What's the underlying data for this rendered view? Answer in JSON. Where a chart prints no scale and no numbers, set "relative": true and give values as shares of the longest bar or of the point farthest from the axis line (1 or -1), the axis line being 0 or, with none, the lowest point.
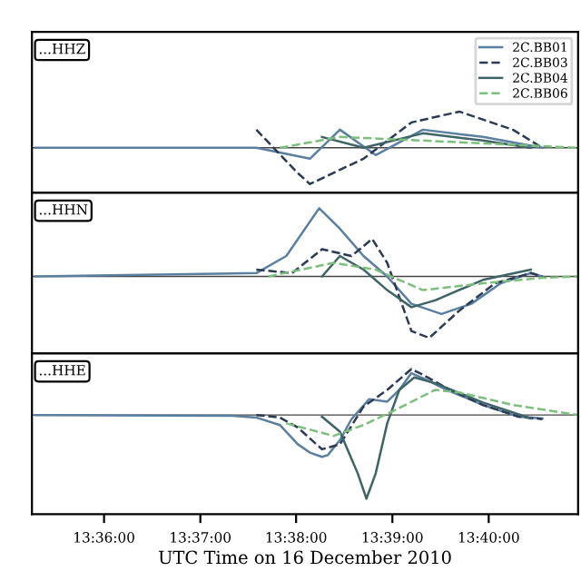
{
  "chart_data": [
    {
      "type": "line",
      "relative": true,
      "annotations": [
        "...HHZ"
      ],
      "legend": "top right",
      "tick_labels": false,
      "grid": false,
      "xlim": [
        13.5875,
        13.6822
      ],
      "xticks": [
        {
          "value": 13.6,
          "label": null
        },
        {
          "value": 13.6167,
          "label": null
        },
        {
          "value": 13.6333,
          "label": null
        },
        {
          "value": 13.65,
          "label": null
        },
        {
          "value": 13.6667,
          "label": null
        }
      ],
      "series": [
        {
          "name": "2C.BB01",
          "color": "#5b7fa0",
          "line_style": "solid",
          "x": [
            13.5881,
            13.6264,
            13.6357,
            13.6409,
            13.6471,
            13.6553,
            13.6657,
            13.676
          ],
          "values": [
            0,
            0,
            -0.3,
            0.5,
            -0.2,
            0.5,
            0.3,
            0
          ]
        },
        {
          "name": "2C.BB03",
          "color": "#2b3a55",
          "line_style": "dashed",
          "x": [
            13.6264,
            13.6336,
            13.6357,
            13.645,
            13.6533,
            13.6616,
            13.6709,
            13.676
          ],
          "values": [
            0.5,
            -0.7,
            -1.0,
            -0.3,
            0.7,
            1.0,
            0.5,
            0
          ]
        },
        {
          "name": "2C.BB04",
          "color": "#3f6468",
          "line_style": "solid",
          "x": [
            13.6378,
            13.645,
            13.6553,
            13.6657,
            13.674
          ],
          "values": [
            0.3,
            0,
            0.4,
            0.2,
            0
          ]
        },
        {
          "name": "2C.BB06",
          "color": "#7cbf7c",
          "line_style": "dashed",
          "x": [
            13.6305,
            13.6409,
            13.6553,
            13.6822
          ],
          "values": [
            0,
            0.3,
            0.2,
            0
          ]
        }
      ]
    },
    {
      "type": "line",
      "relative": true,
      "annotations": [
        "...HHN"
      ],
      "tick_labels": false,
      "grid": false,
      "xlim": [
        13.5875,
        13.6822
      ],
      "xticks": [
        {
          "value": 13.6,
          "label": null
        },
        {
          "value": 13.6167,
          "label": null
        },
        {
          "value": 13.6333,
          "label": null
        },
        {
          "value": 13.65,
          "label": null
        },
        {
          "value": 13.6667,
          "label": null
        }
      ],
      "series": [
        {
          "color": "#5b7fa0",
          "line_style": "solid",
          "x": [
            13.5881,
            13.6264,
            13.6316,
            13.6373,
            13.6409,
            13.645,
            13.6491,
            13.6533,
            13.6585,
            13.6637,
            13.6688,
            13.674,
            13.676
          ],
          "values": [
            0,
            0.05,
            0.3,
            1.0,
            0.7,
            0.3,
            0,
            -0.4,
            -0.55,
            -0.4,
            -0.1,
            0.05,
            0
          ]
        },
        {
          "color": "#2b3a55",
          "line_style": "dashed",
          "x": [
            13.6264,
            13.6326,
            13.6378,
            13.6429,
            13.6465,
            13.6491,
            13.6533,
            13.6564,
            13.6616,
            13.6678,
            13.674,
            13.676
          ],
          "values": [
            0.1,
            0.05,
            0.4,
            0.3,
            0.55,
            0.2,
            -0.8,
            -0.9,
            -0.5,
            -0.1,
            0.05,
            0
          ]
        },
        {
          "color": "#3f6468",
          "line_style": "solid",
          "x": [
            13.6378,
            13.6409,
            13.645,
            13.6491,
            13.6533,
            13.6574,
            13.6657,
            13.674
          ],
          "values": [
            0,
            0.3,
            0.1,
            -0.2,
            -0.45,
            -0.35,
            -0.05,
            0.1
          ]
        },
        {
          "color": "#7cbf7c",
          "line_style": "dashed",
          "x": [
            13.6285,
            13.6398,
            13.6471,
            13.6553,
            13.6657,
            13.676,
            13.6822
          ],
          "values": [
            0,
            0.2,
            0.1,
            -0.2,
            -0.1,
            -0.02,
            0
          ]
        }
      ]
    },
    {
      "type": "line",
      "relative": true,
      "annotations": [
        "...HHE"
      ],
      "tick_labels": "x",
      "grid": false,
      "xlabel": "UTC Time on 16 December 2010",
      "xlim": [
        13.5875,
        13.6822
      ],
      "xticks": [
        {
          "value": 13.6,
          "label": "13:36:00"
        },
        {
          "value": 13.6167,
          "label": "13:37:00"
        },
        {
          "value": 13.6333,
          "label": "13:38:00"
        },
        {
          "value": 13.65,
          "label": "13:39:00"
        },
        {
          "value": 13.6667,
          "label": "13:40:00"
        }
      ],
      "series": [
        {
          "color": "#5b7fa0",
          "line_style": "solid",
          "x": [
            13.5881,
            13.6223,
            13.6264,
            13.6305,
            13.6336,
            13.6357,
            13.6378,
            13.6388,
            13.6409,
            13.6429,
            13.646,
            13.6491,
            13.6512,
            13.6533,
            13.6553,
            13.6595,
            13.6657,
            13.6719,
            13.676
          ],
          "values": [
            0,
            -0.01,
            -0.03,
            -0.12,
            -0.35,
            -0.45,
            -0.5,
            -0.48,
            -0.3,
            -0.05,
            0.19,
            0.16,
            0.3,
            0.5,
            0.44,
            0.3,
            0.12,
            -0.02,
            -0.04
          ]
        },
        {
          "color": "#2b3a55",
          "line_style": "dashed",
          "x": [
            13.6264,
            13.6305,
            13.6336,
            13.6378,
            13.6409,
            13.645,
            13.6491,
            13.6533,
            13.6553,
            13.6595,
            13.6657,
            13.6719,
            13.676
          ],
          "values": [
            0,
            -0.03,
            -0.15,
            -0.41,
            -0.35,
            0.1,
            0.3,
            0.55,
            0.48,
            0.32,
            0.12,
            -0.02,
            -0.05
          ]
        },
        {
          "color": "#3f6468",
          "line_style": "solid",
          "x": [
            13.6378,
            13.6409,
            13.644,
            13.6455,
            13.6471,
            13.6491,
            13.6512,
            13.6538,
            13.6574,
            13.6657,
            13.674
          ],
          "values": [
            -0.02,
            -0.2,
            -0.7,
            -1.0,
            -0.7,
            -0.1,
            0.3,
            0.45,
            0.38,
            0.15,
            -0.04
          ]
        },
        {
          "color": "#7cbf7c",
          "line_style": "dashed",
          "x": [
            13.6316,
            13.6398,
            13.645,
            13.6502,
            13.6574,
            13.6616,
            13.6709,
            13.6822
          ],
          "values": [
            -0.1,
            -0.25,
            -0.12,
            0.05,
            0.3,
            0.27,
            0.12,
            0
          ]
        }
      ]
    }
  ]
}
